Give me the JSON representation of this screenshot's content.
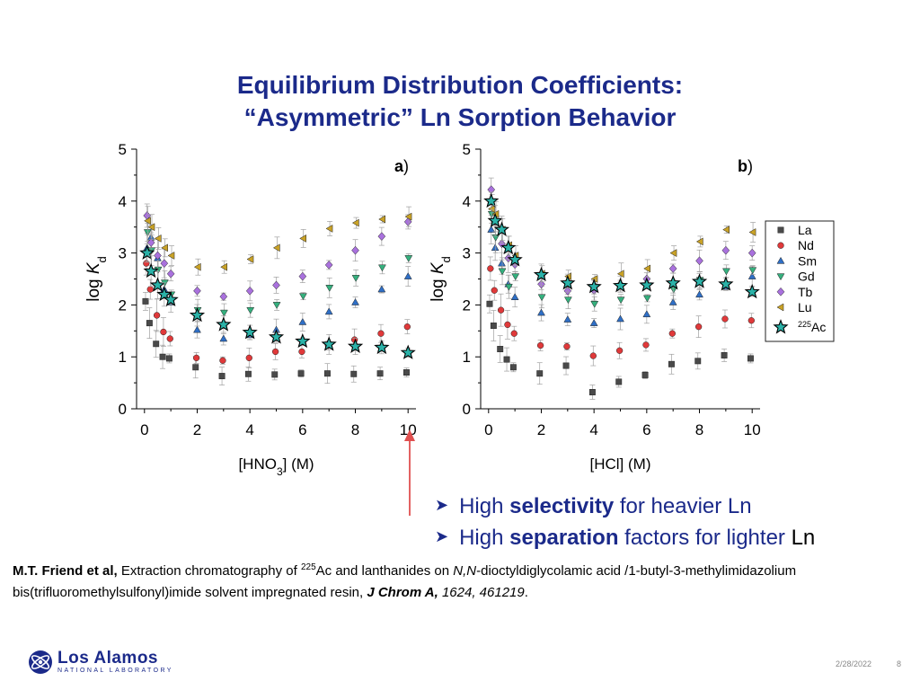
{
  "slide": {
    "title_line1": "Equilibrium Distribution Coefficients:",
    "title_line2": "“Asymmetric” Ln Sorption Behavior",
    "bullets": [
      {
        "pre": "High ",
        "bold": "selectivity",
        "post": " for heavier Ln",
        "tail": ""
      },
      {
        "pre": "High ",
        "bold": "separation",
        "post": " factors for lighter ",
        "tail": "Ln"
      }
    ],
    "citation": {
      "authors": "M.T. Friend et al,",
      "text1": " Extraction chromatography of ",
      "sup": "225",
      "text2": "Ac and lanthanides on ",
      "italic_chem": "N,N",
      "text3": "-dioctyldiglycolamic acid /1-butyl-3-methylimidazolium bis(trifluoromethylsulfonyl)imide solvent impregnated resin, ",
      "journal": "J Chrom A,",
      "volume": " 1624, 461219",
      "end": "."
    },
    "logo": {
      "main": "Los Alamos",
      "sub": "NATIONAL LABORATORY"
    },
    "footer": {
      "date": "2/28/2022",
      "page": "8"
    }
  },
  "chart_data": [
    {
      "type": "scatter",
      "panel": "a",
      "title": "a)",
      "xlabel": "[HNO3] (M)",
      "ylabel": "log Kd",
      "xlim": [
        -0.3,
        10.3
      ],
      "ylim": [
        0,
        5
      ],
      "xticks": [
        "0",
        "2",
        "4",
        "6",
        "8",
        "10"
      ],
      "yticks": [
        "0",
        "1",
        "2",
        "3",
        "4",
        "5"
      ],
      "x": [
        0.1,
        0.25,
        0.5,
        0.75,
        1,
        2,
        3,
        4,
        5,
        6,
        7,
        8,
        9,
        10
      ],
      "series": [
        {
          "name": "La",
          "values": [
            2.07,
            1.65,
            1.25,
            1.0,
            0.97,
            0.8,
            0.63,
            0.67,
            0.66,
            0.68,
            0.68,
            0.67,
            0.68,
            0.7
          ]
        },
        {
          "name": "Nd",
          "values": [
            2.8,
            2.3,
            1.8,
            1.48,
            1.35,
            0.98,
            0.93,
            0.98,
            1.1,
            1.1,
            1.22,
            1.33,
            1.45,
            1.58
          ]
        },
        {
          "name": "Sm",
          "values": [
            3.1,
            3.3,
            2.9,
            2.3,
            2.05,
            1.52,
            1.35,
            1.42,
            1.52,
            1.67,
            1.87,
            2.05,
            2.3,
            2.55
          ]
        },
        {
          "name": "Gd",
          "values": [
            3.4,
            3.05,
            2.68,
            2.43,
            2.2,
            1.9,
            1.85,
            1.9,
            2.0,
            2.17,
            2.33,
            2.52,
            2.72,
            2.9
          ]
        },
        {
          "name": "Tb",
          "values": [
            3.72,
            3.2,
            2.95,
            2.8,
            2.6,
            2.27,
            2.16,
            2.27,
            2.38,
            2.55,
            2.77,
            3.05,
            3.32,
            3.6
          ]
        },
        {
          "name": "Lu",
          "values": [
            3.62,
            3.5,
            3.28,
            3.1,
            2.95,
            2.73,
            2.73,
            2.88,
            3.1,
            3.28,
            3.47,
            3.58,
            3.65,
            3.7
          ]
        },
        {
          "name": "225Ac",
          "values": [
            3.0,
            2.65,
            2.38,
            2.2,
            2.1,
            1.8,
            1.62,
            1.47,
            1.38,
            1.3,
            1.24,
            1.2,
            1.18,
            1.08
          ]
        }
      ]
    },
    {
      "type": "scatter",
      "panel": "b",
      "title": "b)",
      "xlabel": "[HCl] (M)",
      "ylabel": "log Kd",
      "xlim": [
        -0.3,
        10.3
      ],
      "ylim": [
        0,
        5
      ],
      "xticks": [
        "0",
        "2",
        "4",
        "6",
        "8",
        "10"
      ],
      "yticks": [
        "0",
        "1",
        "2",
        "3",
        "4",
        "5"
      ],
      "x": [
        0.1,
        0.25,
        0.5,
        0.75,
        1,
        2,
        3,
        4,
        5,
        6,
        7,
        8,
        9,
        10
      ],
      "series": [
        {
          "name": "La",
          "values": [
            2.02,
            1.6,
            1.15,
            0.95,
            0.8,
            0.68,
            0.83,
            0.32,
            0.52,
            0.65,
            0.86,
            0.92,
            1.03,
            0.97
          ]
        },
        {
          "name": "Nd",
          "values": [
            2.7,
            2.28,
            1.9,
            1.62,
            1.45,
            1.22,
            1.2,
            1.02,
            1.12,
            1.23,
            1.45,
            1.58,
            1.73,
            1.7
          ]
        },
        {
          "name": "Sm",
          "values": [
            3.45,
            3.1,
            2.8,
            2.4,
            2.15,
            1.85,
            1.72,
            1.65,
            1.73,
            1.82,
            2.05,
            2.2,
            2.35,
            2.55
          ]
        },
        {
          "name": "Gd",
          "values": [
            3.75,
            3.3,
            2.65,
            2.35,
            2.55,
            2.15,
            2.1,
            2.02,
            2.1,
            2.13,
            2.3,
            2.48,
            2.65,
            2.67
          ]
        },
        {
          "name": "Tb",
          "values": [
            4.22,
            3.6,
            3.18,
            2.9,
            2.78,
            2.4,
            2.27,
            2.28,
            2.4,
            2.5,
            2.7,
            2.85,
            3.05,
            3.0
          ]
        },
        {
          "name": "Lu",
          "values": [
            3.85,
            3.75,
            3.45,
            3.15,
            2.95,
            2.6,
            2.55,
            2.5,
            2.6,
            2.7,
            3.0,
            3.22,
            3.45,
            3.4
          ]
        },
        {
          "name": "225Ac",
          "values": [
            4.0,
            3.62,
            3.45,
            3.1,
            2.87,
            2.58,
            2.42,
            2.35,
            2.37,
            2.38,
            2.42,
            2.45,
            2.4,
            2.25
          ]
        }
      ]
    }
  ],
  "legend": {
    "items": [
      {
        "name": "La",
        "label": "La",
        "marker": "square",
        "color": "#4a4a4a"
      },
      {
        "name": "Nd",
        "label": "Nd",
        "marker": "circle",
        "color": "#e0393a"
      },
      {
        "name": "Sm",
        "label": "Sm",
        "marker": "triangle-up",
        "color": "#2f6fc6"
      },
      {
        "name": "Gd",
        "label": "Gd",
        "marker": "triangle-down",
        "color": "#35b07e"
      },
      {
        "name": "Tb",
        "label": "Tb",
        "marker": "diamond",
        "color": "#a971dd"
      },
      {
        "name": "Lu",
        "label": "Lu",
        "marker": "triangle-left",
        "color": "#c9a227"
      },
      {
        "name": "225Ac",
        "label": "Ac",
        "label_sup": "225",
        "marker": "star",
        "color": "#2bb2a8"
      }
    ]
  },
  "colors": {
    "title": "#1b2a8a",
    "arrow": "#e05050"
  }
}
